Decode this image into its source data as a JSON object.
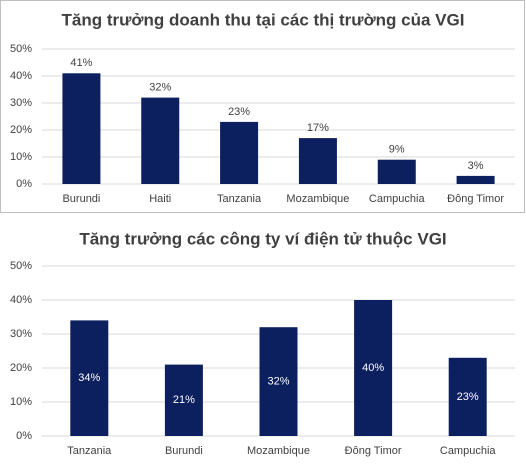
{
  "chart_data": [
    {
      "type": "bar",
      "title": "Tăng trưởng doanh thu tại các thị trường của VGI",
      "categories": [
        "Burundi",
        "Haiti",
        "Tanzania",
        "Mozambique",
        "Campuchia",
        "Đông Timor"
      ],
      "values": [
        41,
        32,
        23,
        17,
        9,
        3
      ],
      "value_labels": [
        "41%",
        "32%",
        "23%",
        "17%",
        "9%",
        "3%"
      ],
      "color": "#0c1f5e",
      "ylim": [
        0,
        50
      ],
      "yticks": [
        {
          "value": 0,
          "label": "0%"
        },
        {
          "value": 10,
          "label": "10%"
        },
        {
          "value": 20,
          "label": "20%"
        },
        {
          "value": 30,
          "label": "30%"
        },
        {
          "value": 40,
          "label": "40%"
        },
        {
          "value": 50,
          "label": "50%"
        }
      ],
      "grid": true
    },
    {
      "type": "bar",
      "title": "Tăng trưởng các công ty ví điện tử thuộc VGI",
      "categories": [
        "Tanzania",
        "Burundi",
        "Mozambique",
        "Đông Timor",
        "Campuchia"
      ],
      "values": [
        34,
        21,
        32,
        40,
        23
      ],
      "value_labels": [
        "34%",
        "21%",
        "32%",
        "40%",
        "23%"
      ],
      "color": "#0c1f5e",
      "ylim": [
        0,
        50
      ],
      "yticks": [
        {
          "value": 0,
          "label": "0%"
        },
        {
          "value": 10,
          "label": "10%"
        },
        {
          "value": 20,
          "label": "20%"
        },
        {
          "value": 30,
          "label": "30%"
        },
        {
          "value": 40,
          "label": "40%"
        },
        {
          "value": 50,
          "label": "50%"
        }
      ],
      "grid": true
    }
  ]
}
